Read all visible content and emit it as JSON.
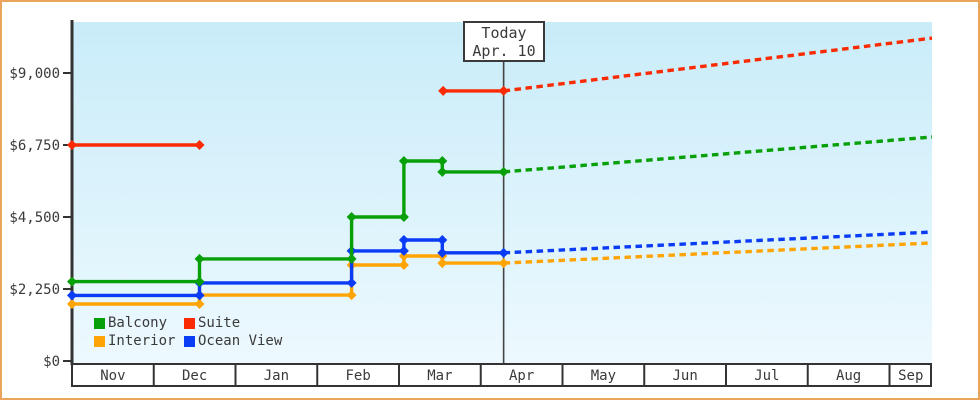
{
  "chart_data": {
    "type": "line",
    "title": "",
    "description": "Cruise cabin price history (solid, step lines with diamond markers) and price prediction after today (dashed lines)",
    "y_axis": {
      "ticks": [
        {
          "value": 0,
          "label": "$0"
        },
        {
          "value": 2250,
          "label": "$2,250"
        },
        {
          "value": 4500,
          "label": "$4,500"
        },
        {
          "value": 6750,
          "label": "$6,750"
        },
        {
          "value": 9000,
          "label": "$9,000"
        }
      ]
    },
    "x_axis": {
      "month_labels": [
        "Nov",
        "Dec",
        "Jan",
        "Feb",
        "Mar",
        "Apr",
        "May",
        "Jun",
        "Jul",
        "Aug",
        "Sep"
      ]
    },
    "today": {
      "line1": "Today",
      "line2": "Apr. 10",
      "month_offset": 5.28
    },
    "plot_end_month_offset": 10.52,
    "draw_order": [
      2,
      3,
      0,
      1
    ],
    "series": [
      {
        "name": "Balcony",
        "color": "#08a008",
        "runs": [
          {
            "points": [
              {
                "date": "Nov 1",
                "m": 0,
                "price": 2480
              },
              {
                "date": "Dec 18",
                "m": 1.56,
                "price": 3190
              },
              {
                "date": "Feb 13",
                "m": 3.42,
                "price": 4500
              },
              {
                "date": "Mar 2",
                "m": 4.06,
                "price": 6250
              },
              {
                "date": "Mar 16",
                "m": 4.53,
                "price": 5910
              }
            ],
            "end_m": 5.28
          }
        ],
        "projection": {
          "from": {
            "m": 5.28,
            "price": 5910
          },
          "to": {
            "m": 10.52,
            "price": 7000,
            "date": "Sep 16"
          }
        }
      },
      {
        "name": "Suite",
        "color": "#fa2b02",
        "runs": [
          {
            "points": [
              {
                "date": "Nov 1",
                "m": 0,
                "price": 6750
              }
            ],
            "end_m": 1.56
          },
          {
            "points": [
              {
                "date": "Mar 16",
                "m": 4.54,
                "price": 8440
              }
            ],
            "end_m": 5.28
          }
        ],
        "projection": {
          "from": {
            "m": 5.28,
            "price": 8440
          },
          "to": {
            "m": 10.52,
            "price": 10090,
            "date": "Sep 16"
          }
        }
      },
      {
        "name": "Interior",
        "color": "#ffa405",
        "runs": [
          {
            "points": [
              {
                "date": "Nov 1",
                "m": 0,
                "price": 1780
              },
              {
                "date": "Dec 18",
                "m": 1.56,
                "price": 2060
              },
              {
                "date": "Feb 13",
                "m": 3.42,
                "price": 3000
              },
              {
                "date": "Mar 2",
                "m": 4.06,
                "price": 3280
              },
              {
                "date": "Mar 16",
                "m": 4.53,
                "price": 3060
              }
            ],
            "end_m": 5.28
          }
        ],
        "projection": {
          "from": {
            "m": 5.28,
            "price": 3060
          },
          "to": {
            "m": 10.52,
            "price": 3690,
            "date": "Sep 16"
          }
        }
      },
      {
        "name": "Ocean View",
        "color": "#0a3bf5",
        "runs": [
          {
            "points": [
              {
                "date": "Nov 1",
                "m": 0,
                "price": 2050
              },
              {
                "date": "Dec 18",
                "m": 1.56,
                "price": 2440
              },
              {
                "date": "Feb 13",
                "m": 3.42,
                "price": 3440
              },
              {
                "date": "Mar 2",
                "m": 4.06,
                "price": 3780
              },
              {
                "date": "Mar 16",
                "m": 4.53,
                "price": 3380
              }
            ],
            "end_m": 5.28
          }
        ],
        "projection": {
          "from": {
            "m": 5.28,
            "price": 3380
          },
          "to": {
            "m": 10.52,
            "price": 4030,
            "date": "Sep 16"
          }
        }
      }
    ],
    "colors": {
      "frame_border": "#eaa55c",
      "plot_bg_top": "#c9ecf9",
      "plot_bg_bottom": "#edf9fe",
      "axis": "#333333",
      "text": "#3a3a3a",
      "today_line": "#444444"
    }
  }
}
